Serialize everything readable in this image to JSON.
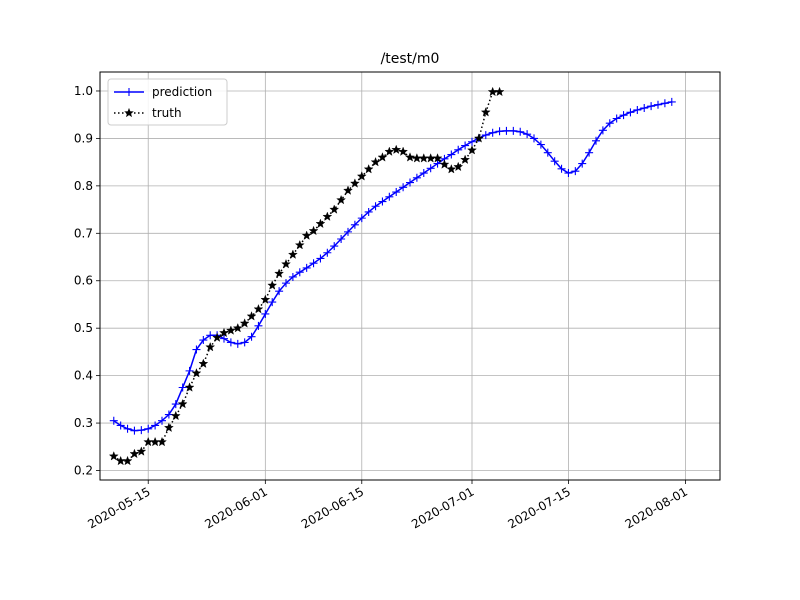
{
  "chart_data": {
    "type": "line",
    "title": "/test/m0",
    "xlabel": "",
    "ylabel": "",
    "x_axis": {
      "type": "date",
      "range": [
        "2020-05-08",
        "2020-08-06"
      ],
      "ticks": [
        "2020-05-15",
        "2020-06-01",
        "2020-06-15",
        "2020-07-01",
        "2020-07-15",
        "2020-08-01"
      ]
    },
    "ylim": [
      0.18,
      1.04
    ],
    "yticks": [
      "0.2",
      "0.3",
      "0.4",
      "0.5",
      "0.6",
      "0.7",
      "0.8",
      "0.9",
      "1.0"
    ],
    "grid": true,
    "legend_position": "top-left",
    "series": [
      {
        "name": "prediction",
        "color": "#0000ff",
        "line_style": "solid",
        "marker": "plus",
        "points": [
          [
            "2020-05-10",
            0.305
          ],
          [
            "2020-05-11",
            0.295
          ],
          [
            "2020-05-12",
            0.288
          ],
          [
            "2020-05-13",
            0.284
          ],
          [
            "2020-05-14",
            0.285
          ],
          [
            "2020-05-15",
            0.288
          ],
          [
            "2020-05-16",
            0.295
          ],
          [
            "2020-05-17",
            0.305
          ],
          [
            "2020-05-18",
            0.318
          ],
          [
            "2020-05-19",
            0.34
          ],
          [
            "2020-05-20",
            0.375
          ],
          [
            "2020-05-21",
            0.41
          ],
          [
            "2020-05-22",
            0.455
          ],
          [
            "2020-05-23",
            0.475
          ],
          [
            "2020-05-24",
            0.485
          ],
          [
            "2020-05-25",
            0.485
          ],
          [
            "2020-05-26",
            0.478
          ],
          [
            "2020-05-27",
            0.47
          ],
          [
            "2020-05-28",
            0.467
          ],
          [
            "2020-05-29",
            0.47
          ],
          [
            "2020-05-30",
            0.482
          ],
          [
            "2020-05-31",
            0.505
          ],
          [
            "2020-06-01",
            0.53
          ],
          [
            "2020-06-02",
            0.555
          ],
          [
            "2020-06-03",
            0.578
          ],
          [
            "2020-06-04",
            0.595
          ],
          [
            "2020-06-05",
            0.608
          ],
          [
            "2020-06-06",
            0.618
          ],
          [
            "2020-06-07",
            0.627
          ],
          [
            "2020-06-08",
            0.637
          ],
          [
            "2020-06-09",
            0.647
          ],
          [
            "2020-06-10",
            0.659
          ],
          [
            "2020-06-11",
            0.673
          ],
          [
            "2020-06-12",
            0.688
          ],
          [
            "2020-06-13",
            0.703
          ],
          [
            "2020-06-14",
            0.718
          ],
          [
            "2020-06-15",
            0.732
          ],
          [
            "2020-06-16",
            0.745
          ],
          [
            "2020-06-17",
            0.757
          ],
          [
            "2020-06-18",
            0.767
          ],
          [
            "2020-06-19",
            0.777
          ],
          [
            "2020-06-20",
            0.787
          ],
          [
            "2020-06-21",
            0.797
          ],
          [
            "2020-06-22",
            0.807
          ],
          [
            "2020-06-23",
            0.817
          ],
          [
            "2020-06-24",
            0.827
          ],
          [
            "2020-06-25",
            0.837
          ],
          [
            "2020-06-26",
            0.847
          ],
          [
            "2020-06-27",
            0.857
          ],
          [
            "2020-06-28",
            0.866
          ],
          [
            "2020-06-29",
            0.876
          ],
          [
            "2020-06-30",
            0.885
          ],
          [
            "2020-07-01",
            0.893
          ],
          [
            "2020-07-02",
            0.901
          ],
          [
            "2020-07-03",
            0.907
          ],
          [
            "2020-07-04",
            0.912
          ],
          [
            "2020-07-05",
            0.915
          ],
          [
            "2020-07-06",
            0.916
          ],
          [
            "2020-07-07",
            0.916
          ],
          [
            "2020-07-08",
            0.914
          ],
          [
            "2020-07-09",
            0.909
          ],
          [
            "2020-07-10",
            0.9
          ],
          [
            "2020-07-11",
            0.887
          ],
          [
            "2020-07-12",
            0.87
          ],
          [
            "2020-07-13",
            0.852
          ],
          [
            "2020-07-14",
            0.836
          ],
          [
            "2020-07-15",
            0.827
          ],
          [
            "2020-07-16",
            0.831
          ],
          [
            "2020-07-17",
            0.847
          ],
          [
            "2020-07-18",
            0.87
          ],
          [
            "2020-07-19",
            0.895
          ],
          [
            "2020-07-20",
            0.917
          ],
          [
            "2020-07-21",
            0.932
          ],
          [
            "2020-07-22",
            0.942
          ],
          [
            "2020-07-23",
            0.949
          ],
          [
            "2020-07-24",
            0.955
          ],
          [
            "2020-07-25",
            0.96
          ],
          [
            "2020-07-26",
            0.964
          ],
          [
            "2020-07-27",
            0.968
          ],
          [
            "2020-07-28",
            0.971
          ],
          [
            "2020-07-29",
            0.974
          ],
          [
            "2020-07-30",
            0.977
          ]
        ]
      },
      {
        "name": "truth",
        "color": "#000000",
        "line_style": "dotted",
        "marker": "star",
        "points": [
          [
            "2020-05-10",
            0.23
          ],
          [
            "2020-05-11",
            0.22
          ],
          [
            "2020-05-12",
            0.22
          ],
          [
            "2020-05-13",
            0.235
          ],
          [
            "2020-05-14",
            0.24
          ],
          [
            "2020-05-15",
            0.26
          ],
          [
            "2020-05-16",
            0.26
          ],
          [
            "2020-05-17",
            0.26
          ],
          [
            "2020-05-18",
            0.29
          ],
          [
            "2020-05-19",
            0.315
          ],
          [
            "2020-05-20",
            0.34
          ],
          [
            "2020-05-21",
            0.375
          ],
          [
            "2020-05-22",
            0.405
          ],
          [
            "2020-05-23",
            0.425
          ],
          [
            "2020-05-24",
            0.46
          ],
          [
            "2020-05-25",
            0.48
          ],
          [
            "2020-05-26",
            0.49
          ],
          [
            "2020-05-27",
            0.495
          ],
          [
            "2020-05-28",
            0.5
          ],
          [
            "2020-05-29",
            0.51
          ],
          [
            "2020-05-30",
            0.525
          ],
          [
            "2020-05-31",
            0.54
          ],
          [
            "2020-06-01",
            0.56
          ],
          [
            "2020-06-02",
            0.59
          ],
          [
            "2020-06-03",
            0.615
          ],
          [
            "2020-06-04",
            0.635
          ],
          [
            "2020-06-05",
            0.655
          ],
          [
            "2020-06-06",
            0.675
          ],
          [
            "2020-06-07",
            0.695
          ],
          [
            "2020-06-08",
            0.705
          ],
          [
            "2020-06-09",
            0.72
          ],
          [
            "2020-06-10",
            0.735
          ],
          [
            "2020-06-11",
            0.75
          ],
          [
            "2020-06-12",
            0.77
          ],
          [
            "2020-06-13",
            0.79
          ],
          [
            "2020-06-14",
            0.805
          ],
          [
            "2020-06-15",
            0.82
          ],
          [
            "2020-06-16",
            0.835
          ],
          [
            "2020-06-17",
            0.85
          ],
          [
            "2020-06-18",
            0.86
          ],
          [
            "2020-06-19",
            0.872
          ],
          [
            "2020-06-20",
            0.876
          ],
          [
            "2020-06-21",
            0.872
          ],
          [
            "2020-06-22",
            0.86
          ],
          [
            "2020-06-23",
            0.858
          ],
          [
            "2020-06-24",
            0.858
          ],
          [
            "2020-06-25",
            0.858
          ],
          [
            "2020-06-26",
            0.858
          ],
          [
            "2020-06-27",
            0.845
          ],
          [
            "2020-06-28",
            0.835
          ],
          [
            "2020-06-29",
            0.84
          ],
          [
            "2020-06-30",
            0.855
          ],
          [
            "2020-07-01",
            0.875
          ],
          [
            "2020-07-02",
            0.9
          ],
          [
            "2020-07-03",
            0.955
          ],
          [
            "2020-07-04",
            0.998
          ],
          [
            "2020-07-05",
            0.998
          ]
        ]
      }
    ]
  }
}
